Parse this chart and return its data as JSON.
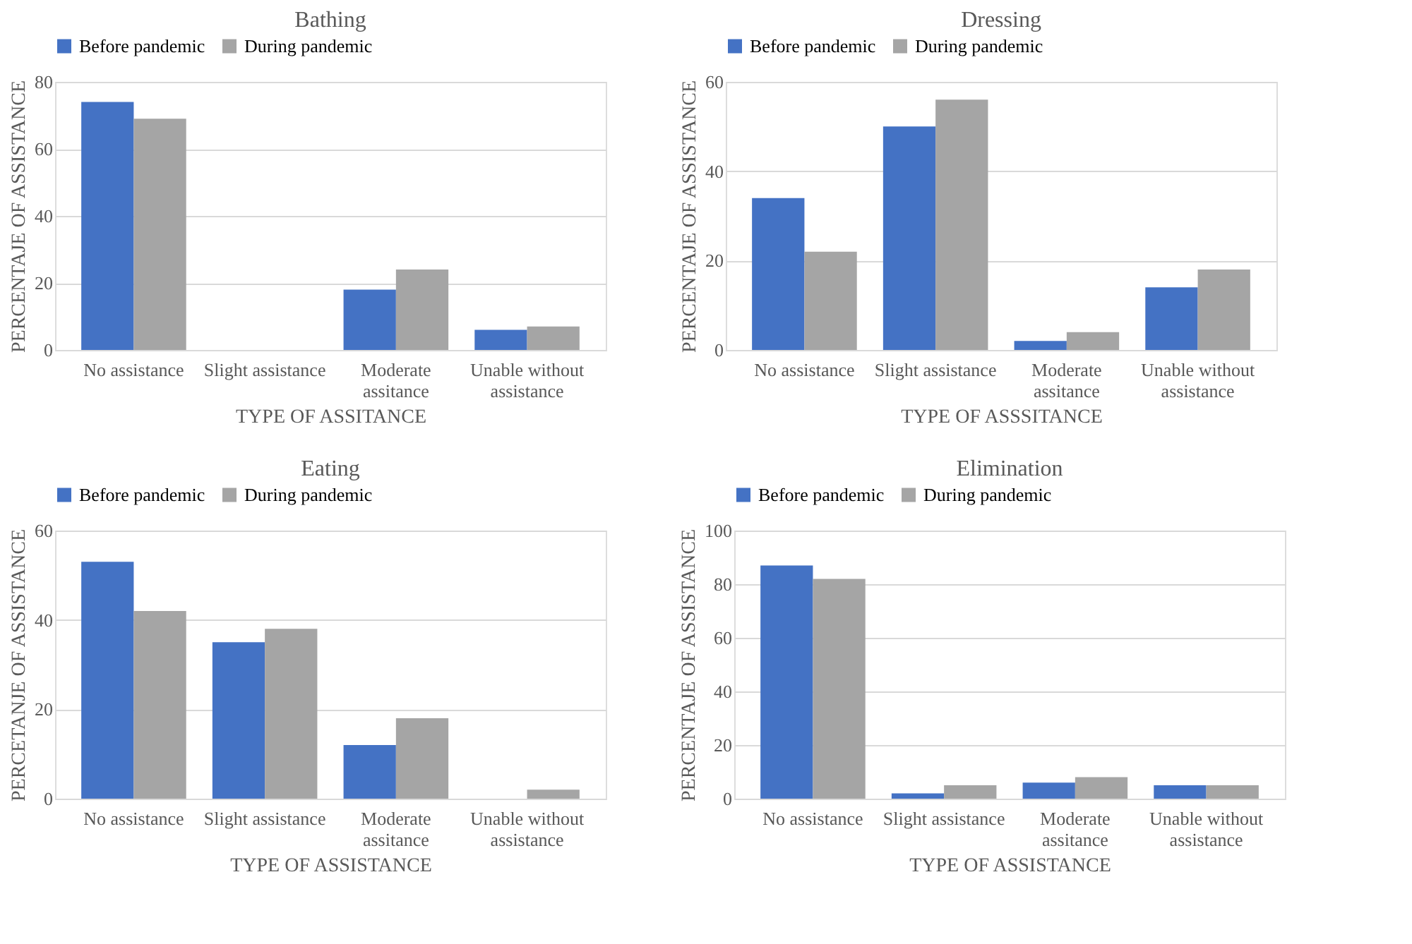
{
  "chart_data": [
    {
      "type": "bar",
      "title": "Bathing",
      "xlabel": "TYPE OF ASSITANCE",
      "ylabel": "PERCENTAJE OF ASSISTANCE",
      "categories": [
        "No assistance",
        "Slight assistance",
        "Moderate assitance",
        "Unable without assistance"
      ],
      "series": [
        {
          "name": "Before pandemic",
          "color": "#4472c4",
          "values": [
            74,
            0,
            18,
            6
          ]
        },
        {
          "name": "During pandemic",
          "color": "#a5a5a5",
          "values": [
            69,
            0,
            24,
            7
          ]
        }
      ],
      "ylim": [
        0,
        80
      ],
      "yticks": [
        0,
        20,
        40,
        60,
        80
      ],
      "grid": "y",
      "legend": "top"
    },
    {
      "type": "bar",
      "title": "Dressing",
      "xlabel": "TYPE OF ASSSITANCE",
      "ylabel": "PERCENTAJE OF ASSISTANCE",
      "categories": [
        "No assistance",
        "Slight assistance",
        "Moderate assitance",
        "Unable without assistance"
      ],
      "series": [
        {
          "name": "Before pandemic",
          "color": "#4472c4",
          "values": [
            34,
            50,
            2,
            14
          ]
        },
        {
          "name": "During pandemic",
          "color": "#a5a5a5",
          "values": [
            22,
            56,
            4,
            18
          ]
        }
      ],
      "ylim": [
        0,
        60
      ],
      "yticks": [
        0,
        20,
        40,
        60
      ],
      "grid": "y",
      "legend": "top"
    },
    {
      "type": "bar",
      "title": "Eating",
      "xlabel": "TYPE OF ASSISTANCE",
      "ylabel": "PERCETANJE OF ASSISTANCE",
      "categories": [
        "No assistance",
        "Slight assistance",
        "Moderate assitance",
        "Unable without assistance"
      ],
      "series": [
        {
          "name": "Before pandemic",
          "color": "#4472c4",
          "values": [
            53,
            35,
            12,
            0
          ]
        },
        {
          "name": "During pandemic",
          "color": "#a5a5a5",
          "values": [
            42,
            38,
            18,
            2
          ]
        }
      ],
      "ylim": [
        0,
        60
      ],
      "yticks": [
        0,
        20,
        40,
        60
      ],
      "grid": "y",
      "legend": "top"
    },
    {
      "type": "bar",
      "title": "Elimination",
      "xlabel": "TYPE OF ASSISTANCE",
      "ylabel": "PERCENTAJE OF ASSISTANCE",
      "categories": [
        "No assistance",
        "Slight assistance",
        "Moderate assitance",
        "Unable without assistance"
      ],
      "series": [
        {
          "name": "Before pandemic",
          "color": "#4472c4",
          "values": [
            87,
            2,
            6,
            5
          ]
        },
        {
          "name": "During pandemic",
          "color": "#a5a5a5",
          "values": [
            82,
            5,
            8,
            5
          ]
        }
      ],
      "ylim": [
        0,
        100
      ],
      "yticks": [
        0,
        20,
        40,
        60,
        80,
        100
      ],
      "grid": "y",
      "legend": "top"
    }
  ]
}
